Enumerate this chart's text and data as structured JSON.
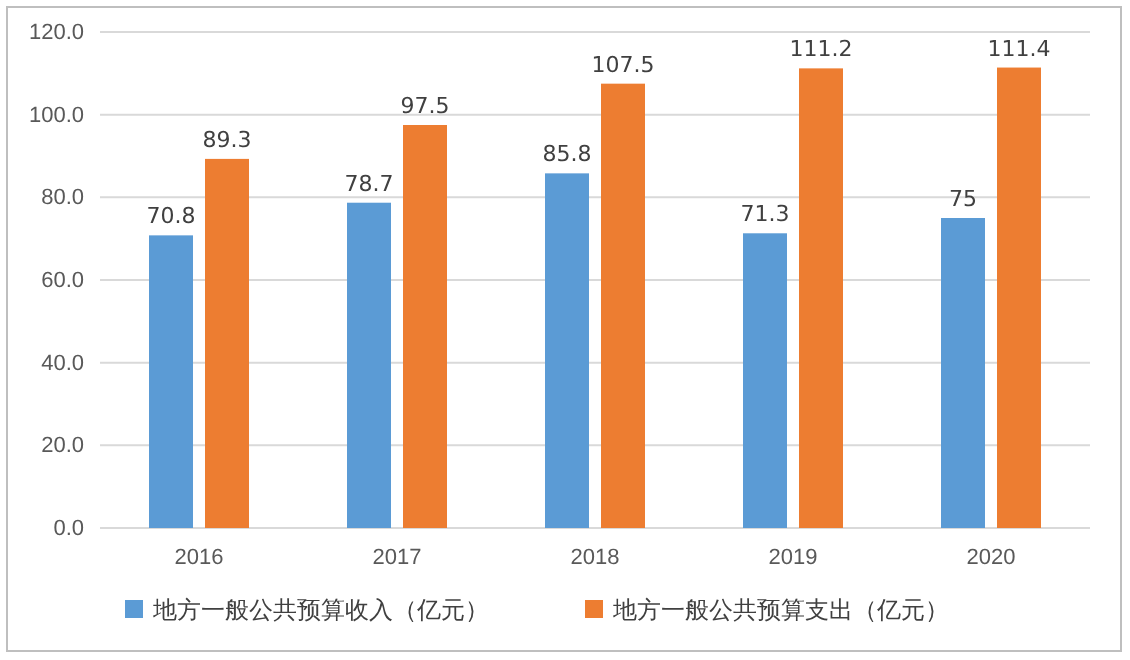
{
  "chart_data": {
    "type": "bar",
    "categories": [
      "2016",
      "2017",
      "2018",
      "2019",
      "2020"
    ],
    "series": [
      {
        "name": "地方一般公共预算收入（亿元）",
        "color": "#5b9bd5",
        "values": [
          70.8,
          78.7,
          85.8,
          71.3,
          75
        ]
      },
      {
        "name": "地方一般公共预算支出（亿元）",
        "color": "#ed7d31",
        "values": [
          89.3,
          97.5,
          107.5,
          111.2,
          111.4
        ]
      }
    ],
    "ylim": [
      0,
      120
    ],
    "yticks": [
      {
        "value": 0,
        "label": "0.0"
      },
      {
        "value": 20,
        "label": "20.0"
      },
      {
        "value": 40,
        "label": "40.0"
      },
      {
        "value": 60,
        "label": "60.0"
      },
      {
        "value": 80,
        "label": "80.0"
      },
      {
        "value": 100,
        "label": "100.0"
      },
      {
        "value": 120,
        "label": "120.0"
      }
    ],
    "grid": "y",
    "legend": "bottom",
    "data_labels": true
  }
}
